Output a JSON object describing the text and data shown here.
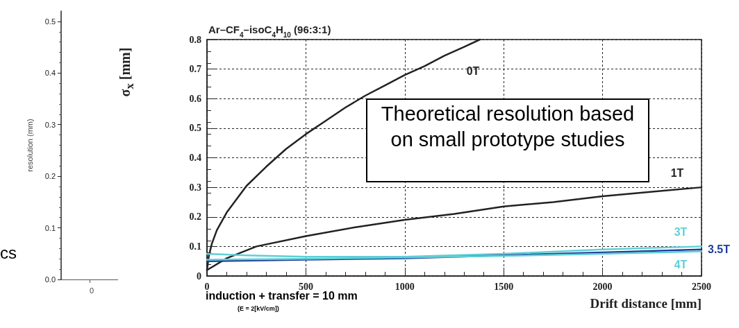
{
  "chart_data": [
    {
      "type": "line",
      "ylabel": "resolution (mm)",
      "ylim": [
        0,
        0.52
      ],
      "yticks": [
        {
          "value": 0,
          "label": "0.0"
        },
        {
          "value": 0.1,
          "label": "0.1"
        },
        {
          "value": 0.2,
          "label": "0.2"
        },
        {
          "value": 0.3,
          "label": "0.3"
        },
        {
          "value": 0.4,
          "label": "0.4"
        },
        {
          "value": 0.5,
          "label": "0.5"
        }
      ],
      "categories": [
        "0"
      ],
      "annotations": [
        "cs"
      ],
      "grid": false
    },
    {
      "type": "line",
      "title": "Ar–CF$_{4}$–isoC$_{4}$H$_{10}$ (96:3:1)",
      "xlabel": "Drift distance [mm]",
      "ylabel": "σ$_{x}$ [mm]",
      "xlim": [
        0,
        2500
      ],
      "xticks": [
        0,
        500,
        1000,
        1500,
        2000,
        2500
      ],
      "ylim": [
        0,
        0.8
      ],
      "yticks": [
        0,
        0.1,
        0.2,
        0.3,
        0.4,
        0.5,
        0.6,
        0.7,
        0.8
      ],
      "grid": true,
      "marker": "none",
      "line_style": "solid",
      "annotations": [
        "Theoretical resolution based on small prototype studies",
        "induction + transfer = 10 mm",
        "(E = 2[kV/cm])"
      ],
      "series": [
        {
          "name": "0T",
          "color": "#222222",
          "x": [
            0,
            10,
            25,
            50,
            100,
            200,
            300,
            400,
            500,
            600,
            700,
            800,
            900,
            1000,
            1100,
            1200,
            1300,
            1380
          ],
          "values": [
            0.02,
            0.07,
            0.11,
            0.155,
            0.215,
            0.305,
            0.37,
            0.43,
            0.48,
            0.525,
            0.57,
            0.61,
            0.645,
            0.68,
            0.71,
            0.745,
            0.775,
            0.8
          ]
        },
        {
          "name": "1T",
          "color": "#222222",
          "x": [
            0,
            100,
            250,
            500,
            750,
            1000,
            1250,
            1500,
            1750,
            2000,
            2250,
            2500
          ],
          "values": [
            0.02,
            0.06,
            0.1,
            0.135,
            0.165,
            0.19,
            0.21,
            0.235,
            0.25,
            0.27,
            0.285,
            0.3
          ]
        },
        {
          "name": "3T",
          "color": "#5fcfd6",
          "x": [
            0,
            200,
            500,
            1000,
            1500,
            2000,
            2500
          ],
          "values": [
            0.075,
            0.07,
            0.065,
            0.065,
            0.075,
            0.09,
            0.1
          ]
        },
        {
          "name": "3.5T",
          "color": "#1f3d99",
          "x": [
            0,
            500,
            1000,
            1500,
            2000,
            2500
          ],
          "values": [
            0.05,
            0.055,
            0.06,
            0.07,
            0.08,
            0.09
          ]
        },
        {
          "name": "4T",
          "color": "#5fcfd6",
          "x": [
            0,
            500,
            1000,
            1500,
            2000,
            2500
          ],
          "values": [
            0.055,
            0.058,
            0.063,
            0.068,
            0.075,
            0.083
          ]
        }
      ]
    }
  ]
}
